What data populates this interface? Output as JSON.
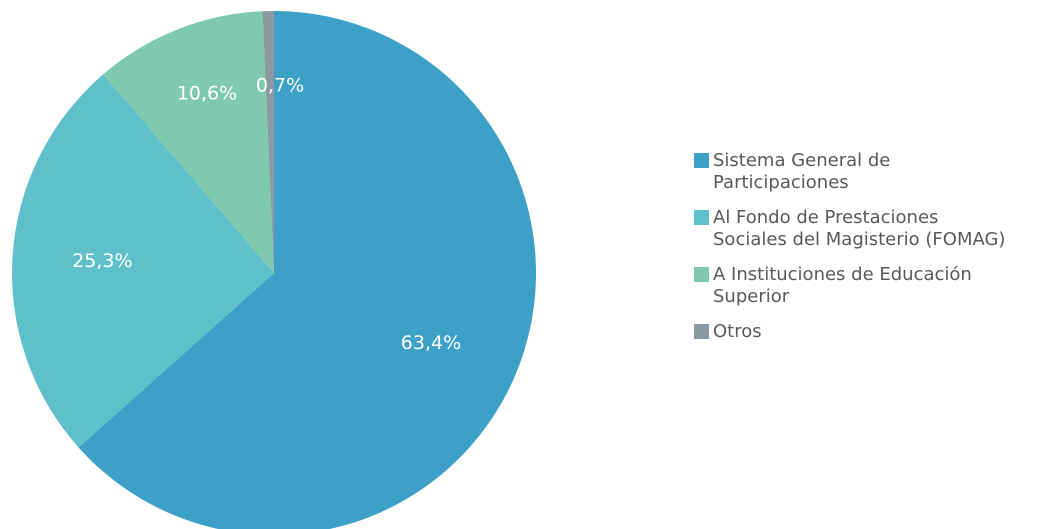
{
  "chart_data": {
    "type": "pie",
    "title": "",
    "categories": [
      "Sistema General de Participaciones",
      "Al Fondo de Prestaciones Sociales del Magisterio (FOMAG)",
      "A Instituciones de Educación Superior",
      "Otros"
    ],
    "values": [
      63.4,
      25.3,
      10.6,
      0.7
    ],
    "value_labels": [
      "63,4%",
      "25,3%",
      "10,6%",
      "0,7%"
    ],
    "colors": [
      "#3da0c7",
      "#5fc0cc",
      "#7fc9ae",
      "#8a9aa0"
    ],
    "start_angle_deg": 0,
    "direction": "clockwise",
    "legend_position": "right",
    "legend_lines": [
      [
        "Sistema General de",
        "Participaciones"
      ],
      [
        "Al Fondo de Prestaciones",
        "Sociales del Magisterio (FOMAG)"
      ],
      [
        "A Instituciones de Educación",
        "Superior"
      ],
      [
        "Otros"
      ]
    ]
  }
}
